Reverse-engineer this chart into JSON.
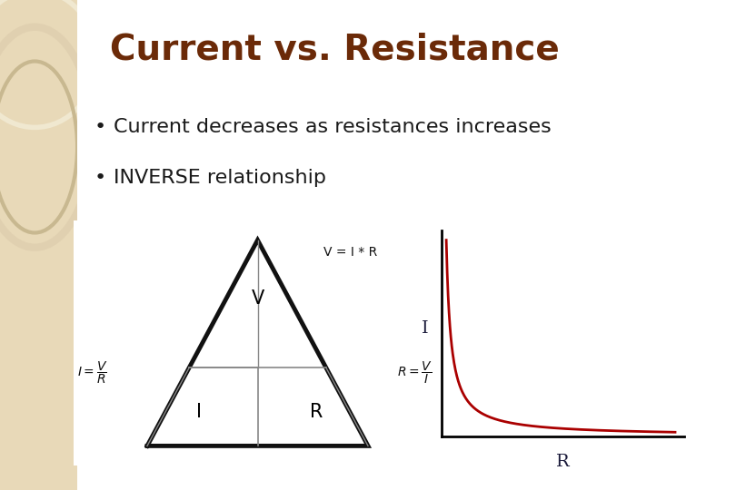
{
  "title": "Current vs. Resistance",
  "title_color": "#6B2A08",
  "title_fontsize": 28,
  "title_fontweight": "bold",
  "bullet1": "Current decreases as resistances increases",
  "bullet2": "INVERSE relationship",
  "bullet_fontsize": 16,
  "bullet_color": "#1A1A1A",
  "background_color": "#FFFFFF",
  "sidebar_color": "#E8D9B8",
  "sidebar_circle_color": "#D4BF98",
  "curve_color": "#AA0000",
  "axis_label_color": "#1A1A3A",
  "axis_label_I": "I",
  "axis_label_R": "R",
  "fig_width": 8.1,
  "fig_height": 5.4,
  "dpi": 100,
  "tri_line_color": "#111111",
  "tri_divider_color": "#888888",
  "formula_color": "#111111"
}
